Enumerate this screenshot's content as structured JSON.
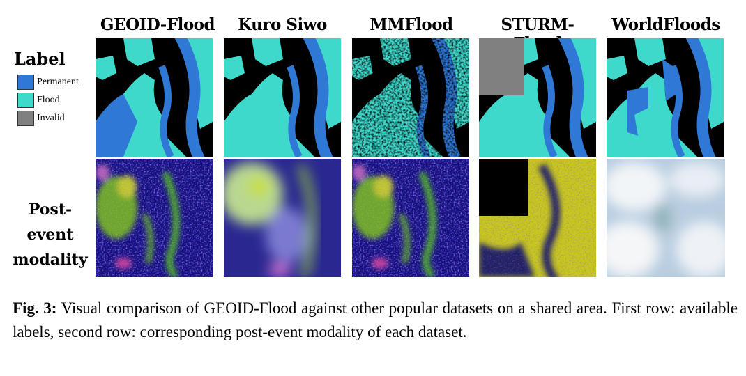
{
  "figure": {
    "columns": [
      "GEOID-Flood",
      "Kuro Siwo",
      "MMFlood",
      "STURM-Flood",
      "WorldFloods"
    ],
    "rows": [
      "Label",
      "Post-event modality"
    ],
    "legend": [
      "Permanent",
      "Flood",
      "Invalid"
    ],
    "caption": {
      "label": "Fig. 3:",
      "text": "Visual comparison of GEOID-Flood against other popular datasets on a shared area. First row: available labels, second row: corresponding post-event modality of each dataset."
    }
  }
}
